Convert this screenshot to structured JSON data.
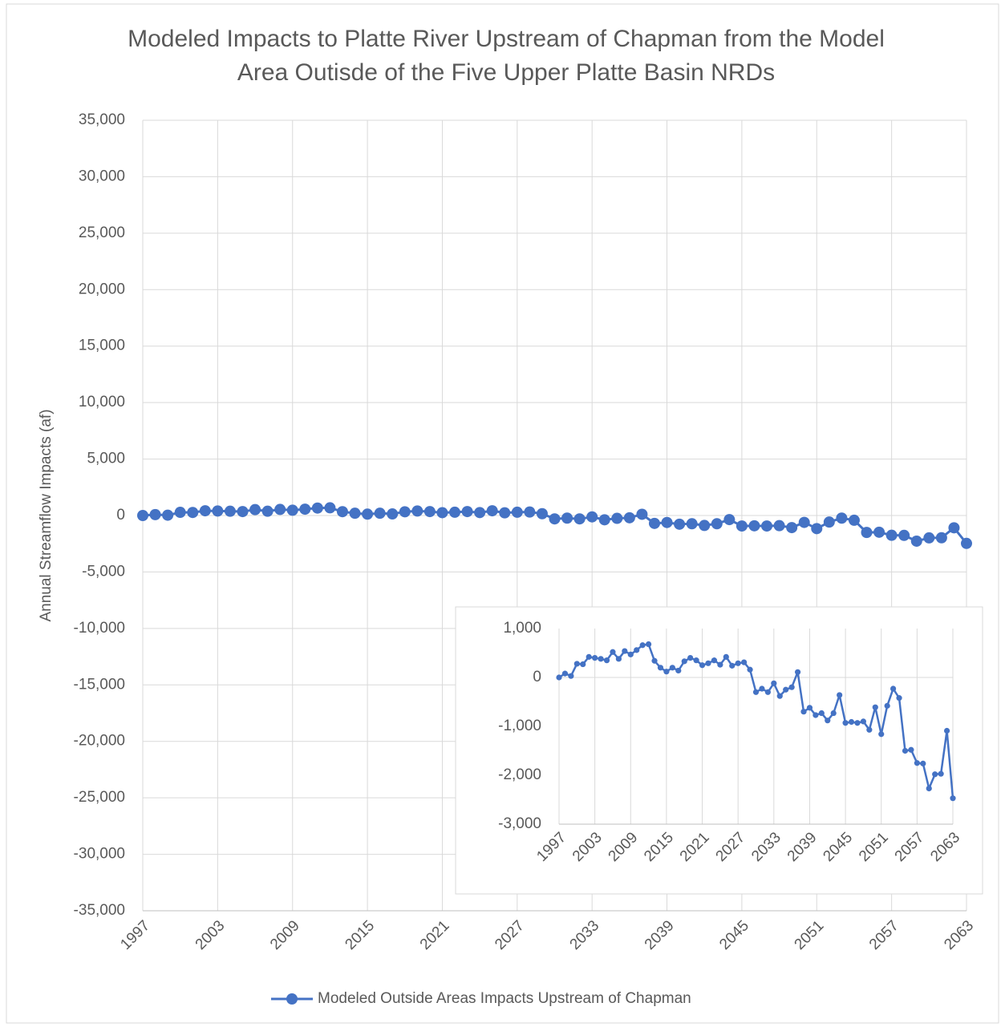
{
  "chart_data": [
    {
      "type": "line",
      "title": "Modeled Impacts to Platte River Upstream of Chapman from the Model Area Outisde of the Five Upper Platte Basin NRDs",
      "y_label": "Annual Streamflow Impacts (af)",
      "x": [
        1997,
        1998,
        1999,
        2000,
        2001,
        2002,
        2003,
        2004,
        2005,
        2006,
        2007,
        2008,
        2009,
        2010,
        2011,
        2012,
        2013,
        2014,
        2015,
        2016,
        2017,
        2018,
        2019,
        2020,
        2021,
        2022,
        2023,
        2024,
        2025,
        2026,
        2027,
        2028,
        2029,
        2030,
        2031,
        2032,
        2033,
        2034,
        2035,
        2036,
        2037,
        2038,
        2039,
        2040,
        2041,
        2042,
        2043,
        2044,
        2045,
        2046,
        2047,
        2048,
        2049,
        2050,
        2051,
        2052,
        2053,
        2054,
        2055,
        2056,
        2057,
        2058,
        2059,
        2060,
        2061,
        2062,
        2063
      ],
      "series": [
        {
          "name": "Modeled Outside Areas Impacts Upstream of Chapman",
          "color": "#4472c4",
          "values": [
            0,
            80,
            30,
            280,
            270,
            420,
            400,
            380,
            350,
            520,
            380,
            540,
            470,
            560,
            660,
            680,
            340,
            200,
            120,
            200,
            140,
            330,
            400,
            350,
            250,
            290,
            350,
            260,
            420,
            240,
            290,
            310,
            160,
            -300,
            -230,
            -300,
            -120,
            -380,
            -250,
            -200,
            110,
            -700,
            -620,
            -770,
            -730,
            -880,
            -730,
            -360,
            -930,
            -910,
            -930,
            -900,
            -1070,
            -610,
            -1160,
            -580,
            -230,
            -420,
            -1500,
            -1480,
            -1750,
            -1760,
            -2270,
            -1980,
            -1970,
            -1090,
            -2470
          ]
        }
      ],
      "xlim": [
        1997,
        2063
      ],
      "xticks": [
        1997,
        2003,
        2009,
        2015,
        2021,
        2027,
        2033,
        2039,
        2045,
        2051,
        2057,
        2063
      ],
      "ylim": [
        -35000,
        35000
      ],
      "yticks": [
        {
          "value": -35000,
          "label": "-35,000"
        },
        {
          "value": -30000,
          "label": "-30,000"
        },
        {
          "value": -25000,
          "label": "-25,000"
        },
        {
          "value": -20000,
          "label": "-20,000"
        },
        {
          "value": -15000,
          "label": "-15,000"
        },
        {
          "value": -10000,
          "label": "-10,000"
        },
        {
          "value": -5000,
          "label": "-5,000"
        },
        0,
        {
          "value": 5000,
          "label": "5,000"
        },
        {
          "value": 10000,
          "label": "10,000"
        },
        {
          "value": 15000,
          "label": "15,000"
        },
        {
          "value": 20000,
          "label": "20,000"
        },
        {
          "value": 25000,
          "label": "25,000"
        },
        {
          "value": 30000,
          "label": "30,000"
        },
        {
          "value": 35000,
          "label": "35,000"
        }
      ],
      "grid": "both",
      "markers": true,
      "legend": "bottom"
    },
    {
      "type": "line",
      "x": [
        1997,
        1998,
        1999,
        2000,
        2001,
        2002,
        2003,
        2004,
        2005,
        2006,
        2007,
        2008,
        2009,
        2010,
        2011,
        2012,
        2013,
        2014,
        2015,
        2016,
        2017,
        2018,
        2019,
        2020,
        2021,
        2022,
        2023,
        2024,
        2025,
        2026,
        2027,
        2028,
        2029,
        2030,
        2031,
        2032,
        2033,
        2034,
        2035,
        2036,
        2037,
        2038,
        2039,
        2040,
        2041,
        2042,
        2043,
        2044,
        2045,
        2046,
        2047,
        2048,
        2049,
        2050,
        2051,
        2052,
        2053,
        2054,
        2055,
        2056,
        2057,
        2058,
        2059,
        2060,
        2061,
        2062,
        2063
      ],
      "series": [
        {
          "color": "#4472c4",
          "values": [
            0,
            80,
            30,
            280,
            270,
            420,
            400,
            380,
            350,
            520,
            380,
            540,
            470,
            560,
            660,
            680,
            340,
            200,
            120,
            200,
            140,
            330,
            400,
            350,
            250,
            290,
            350,
            260,
            420,
            240,
            290,
            310,
            160,
            -300,
            -230,
            -300,
            -120,
            -380,
            -250,
            -200,
            110,
            -700,
            -620,
            -770,
            -730,
            -880,
            -730,
            -360,
            -930,
            -910,
            -930,
            -900,
            -1070,
            -610,
            -1160,
            -580,
            -230,
            -420,
            -1500,
            -1480,
            -1750,
            -1760,
            -2270,
            -1980,
            -1970,
            -1090,
            -2470
          ]
        }
      ],
      "xlim": [
        1997,
        2063
      ],
      "xticks": [
        1997,
        2003,
        2009,
        2015,
        2021,
        2027,
        2033,
        2039,
        2045,
        2051,
        2057,
        2063
      ],
      "ylim": [
        -3000,
        1000
      ],
      "yticks": [
        {
          "value": -3000,
          "label": "-3,000"
        },
        {
          "value": -2000,
          "label": "-2,000"
        },
        {
          "value": -1000,
          "label": "-1,000"
        },
        0,
        {
          "value": 1000,
          "label": "1,000"
        }
      ],
      "grid": "x",
      "markers": true
    }
  ]
}
